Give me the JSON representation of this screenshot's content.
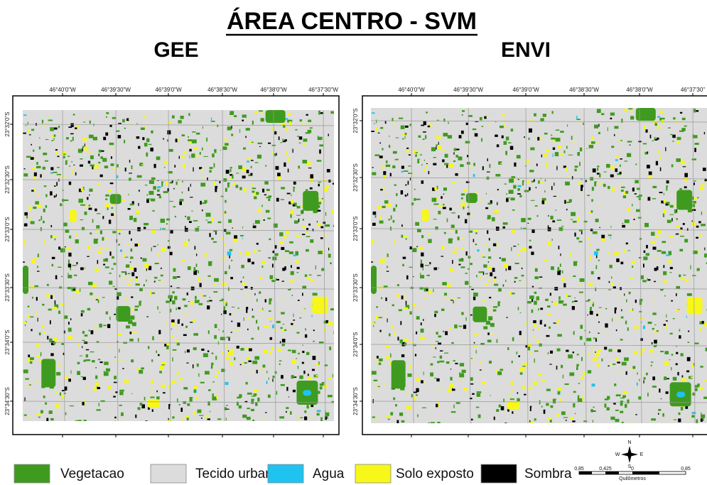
{
  "title": "ÁREA CENTRO - SVM",
  "maps": [
    {
      "title": "GEE",
      "lon_labels": [
        "46°40'0\"W",
        "46°39'30\"W",
        "46°39'0\"W",
        "46°38'30\"W",
        "46°38'0\"W",
        "46°37'30\"W"
      ],
      "lat_labels": [
        "23°32'0\"S",
        "23°32'30\"S",
        "23°33'0\"S",
        "23°33'30\"S",
        "23°34'0\"S",
        "23°34'30\"S"
      ]
    },
    {
      "title": "ENVI",
      "lon_labels": [
        "46°40'0\"W",
        "46°39'30\"W",
        "46°39'0\"W",
        "46°38'30\"W",
        "46°38'0\"W",
        "46°37'30\""
      ],
      "lat_labels": [
        "23°32'0\"S",
        "23°32'30\"S",
        "23°33'0\"S",
        "23°33'30\"S",
        "23°34'0\"S",
        "23°34'30\"S"
      ]
    }
  ],
  "legend": [
    {
      "label": "Vegetacao",
      "color": "#3f9b1f"
    },
    {
      "label": "Tecido urbano",
      "color": "#dcdcdc"
    },
    {
      "label": "Agua",
      "color": "#1ec3f0"
    },
    {
      "label": "Solo exposto",
      "color": "#f7f71a"
    },
    {
      "label": "Sombra",
      "color": "#000000"
    }
  ],
  "scale_bar": {
    "labels": [
      "0,85",
      "0,425",
      "0",
      "0,85"
    ],
    "unit": "Quilômetros"
  },
  "north_arrow": {
    "n": "N",
    "s": "S",
    "e": "E",
    "w": "W"
  }
}
